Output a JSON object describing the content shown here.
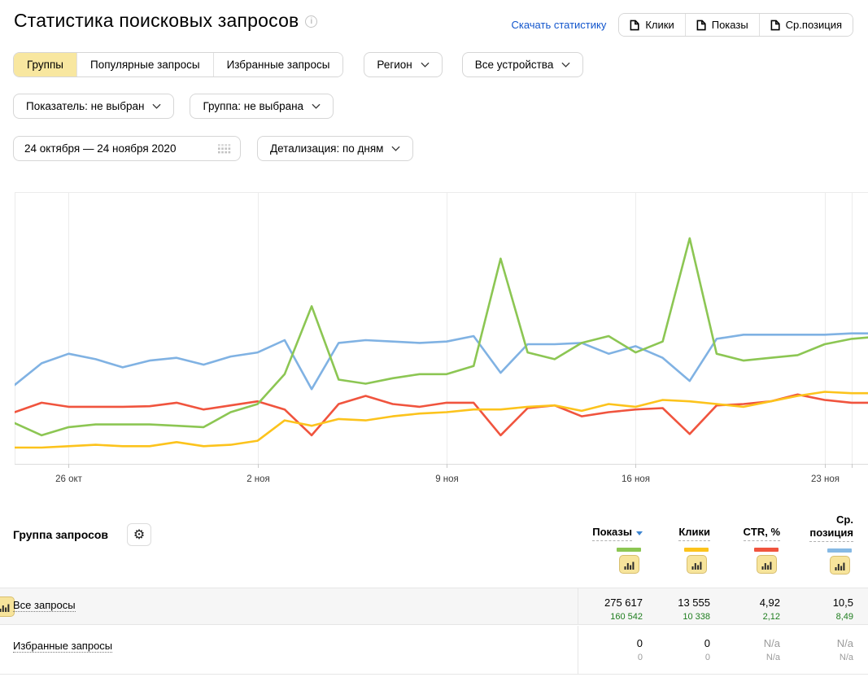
{
  "header": {
    "title": "Статистика поисковых запросов",
    "info_icon": "i",
    "download_link": "Скачать статистику",
    "export_buttons": [
      "Клики",
      "Показы",
      "Ср.позиция"
    ]
  },
  "tabs": {
    "items": [
      "Группы",
      "Популярные запросы",
      "Избранные запросы"
    ],
    "selected_index": 0
  },
  "filters": {
    "region": "Регион",
    "devices": "Все устройства",
    "metric": "Показатель: не выбран",
    "group": "Группа: не выбрана",
    "date_range": "24 октября — 24 ноября 2020",
    "detail": "Детализация: по дням"
  },
  "chart_data": {
    "type": "line",
    "title": "",
    "xlabel": "",
    "ylabel": "",
    "x_range_days": 32,
    "grid": true,
    "legend_position": "table-headers",
    "value_unit": "percent_of_chart_height_from_top",
    "x_ticks": [
      {
        "day": 2,
        "label": "26 окт"
      },
      {
        "day": 9,
        "label": "2 ноя"
      },
      {
        "day": 16,
        "label": "9 ноя"
      },
      {
        "day": 23,
        "label": "16 ноя"
      },
      {
        "day": 30,
        "label": "23 ноя"
      },
      {
        "day": 31,
        "label": ""
      }
    ],
    "series": [
      {
        "name": "Ср. позиция",
        "color": "#80b2e3",
        "values": [
          71,
          63,
          59.5,
          61.5,
          64.5,
          62,
          61,
          63.5,
          60.5,
          59,
          54.5,
          72.5,
          55.5,
          54.5,
          55,
          55.5,
          55,
          53,
          66.5,
          56,
          56,
          55.5,
          59.5,
          56.7,
          61,
          69.5,
          54,
          52.5,
          52.5,
          52.5,
          52.5,
          52,
          52
        ]
      },
      {
        "name": "CTR, %",
        "color": "#f0543e",
        "values": [
          81,
          77.5,
          79,
          79,
          79,
          78.8,
          77.5,
          80,
          78.5,
          77,
          80,
          89.5,
          78,
          75,
          78,
          79,
          77.5,
          77.5,
          89.5,
          79.5,
          78.5,
          82.5,
          81,
          80,
          79.5,
          89,
          78.5,
          78,
          77,
          74.5,
          76.5,
          77.5,
          77.5
        ]
      },
      {
        "name": "Показы",
        "color": "#8cc653",
        "values": [
          85,
          89.5,
          86.5,
          85.5,
          85.5,
          85.5,
          86,
          86.5,
          81,
          78,
          67,
          42,
          69,
          70.5,
          68.5,
          67,
          67,
          64,
          24.5,
          59,
          61.5,
          55.5,
          53,
          59,
          55,
          17,
          59.5,
          62,
          61,
          60,
          56,
          54,
          53.5
        ]
      },
      {
        "name": "Клики",
        "color": "#fcc31c",
        "values": [
          94,
          94,
          93.5,
          93,
          93.5,
          93.5,
          92,
          93.5,
          93,
          91.5,
          84,
          86,
          83.5,
          84,
          82.5,
          81.5,
          81,
          80,
          80,
          79,
          78.5,
          80.5,
          78,
          79,
          76.5,
          77,
          78,
          79,
          77,
          75,
          73.5,
          74,
          74
        ]
      }
    ]
  },
  "table": {
    "group_header": "Группа запросов",
    "columns": [
      {
        "label": "Показы",
        "legend_color": "#8cc653",
        "sorted": true
      },
      {
        "label": "Клики",
        "legend_color": "#fcc31c",
        "sorted": false
      },
      {
        "label": "CTR, %",
        "legend_color": "#f0543e",
        "sorted": false
      },
      {
        "label": "Ср.\nпозиция",
        "legend_color": "#86b9e4",
        "sorted": false
      }
    ],
    "rows": [
      {
        "name": "Все запросы",
        "highlighted": true,
        "chart_toggle": true,
        "cells": [
          {
            "main": "275 617",
            "sub": "160 542",
            "main_gray": false,
            "sub_green": true
          },
          {
            "main": "13 555",
            "sub": "10 338",
            "main_gray": false,
            "sub_green": true
          },
          {
            "main": "4,92",
            "sub": "2,12",
            "main_gray": false,
            "sub_green": true
          },
          {
            "main": "10,5",
            "sub": "8,49",
            "main_gray": false,
            "sub_green": true
          }
        ]
      },
      {
        "name": "Избранные запросы",
        "highlighted": false,
        "chart_toggle": false,
        "cells": [
          {
            "main": "0",
            "sub": "0",
            "main_gray": false,
            "sub_green": false
          },
          {
            "main": "0",
            "sub": "0",
            "main_gray": false,
            "sub_green": false
          },
          {
            "main": "N/a",
            "sub": "N/a",
            "main_gray": true,
            "sub_green": false
          },
          {
            "main": "N/a",
            "sub": "N/a",
            "main_gray": true,
            "sub_green": false
          }
        ]
      }
    ]
  },
  "colors": {
    "accent_yellow_bg": "#f8e7a0",
    "link_blue": "#1155cc",
    "sort_arrow_blue": "#3d85d1",
    "positive_green": "#1e7d1e",
    "muted_gray": "#9b9b9b",
    "gridline": "#ececec"
  }
}
